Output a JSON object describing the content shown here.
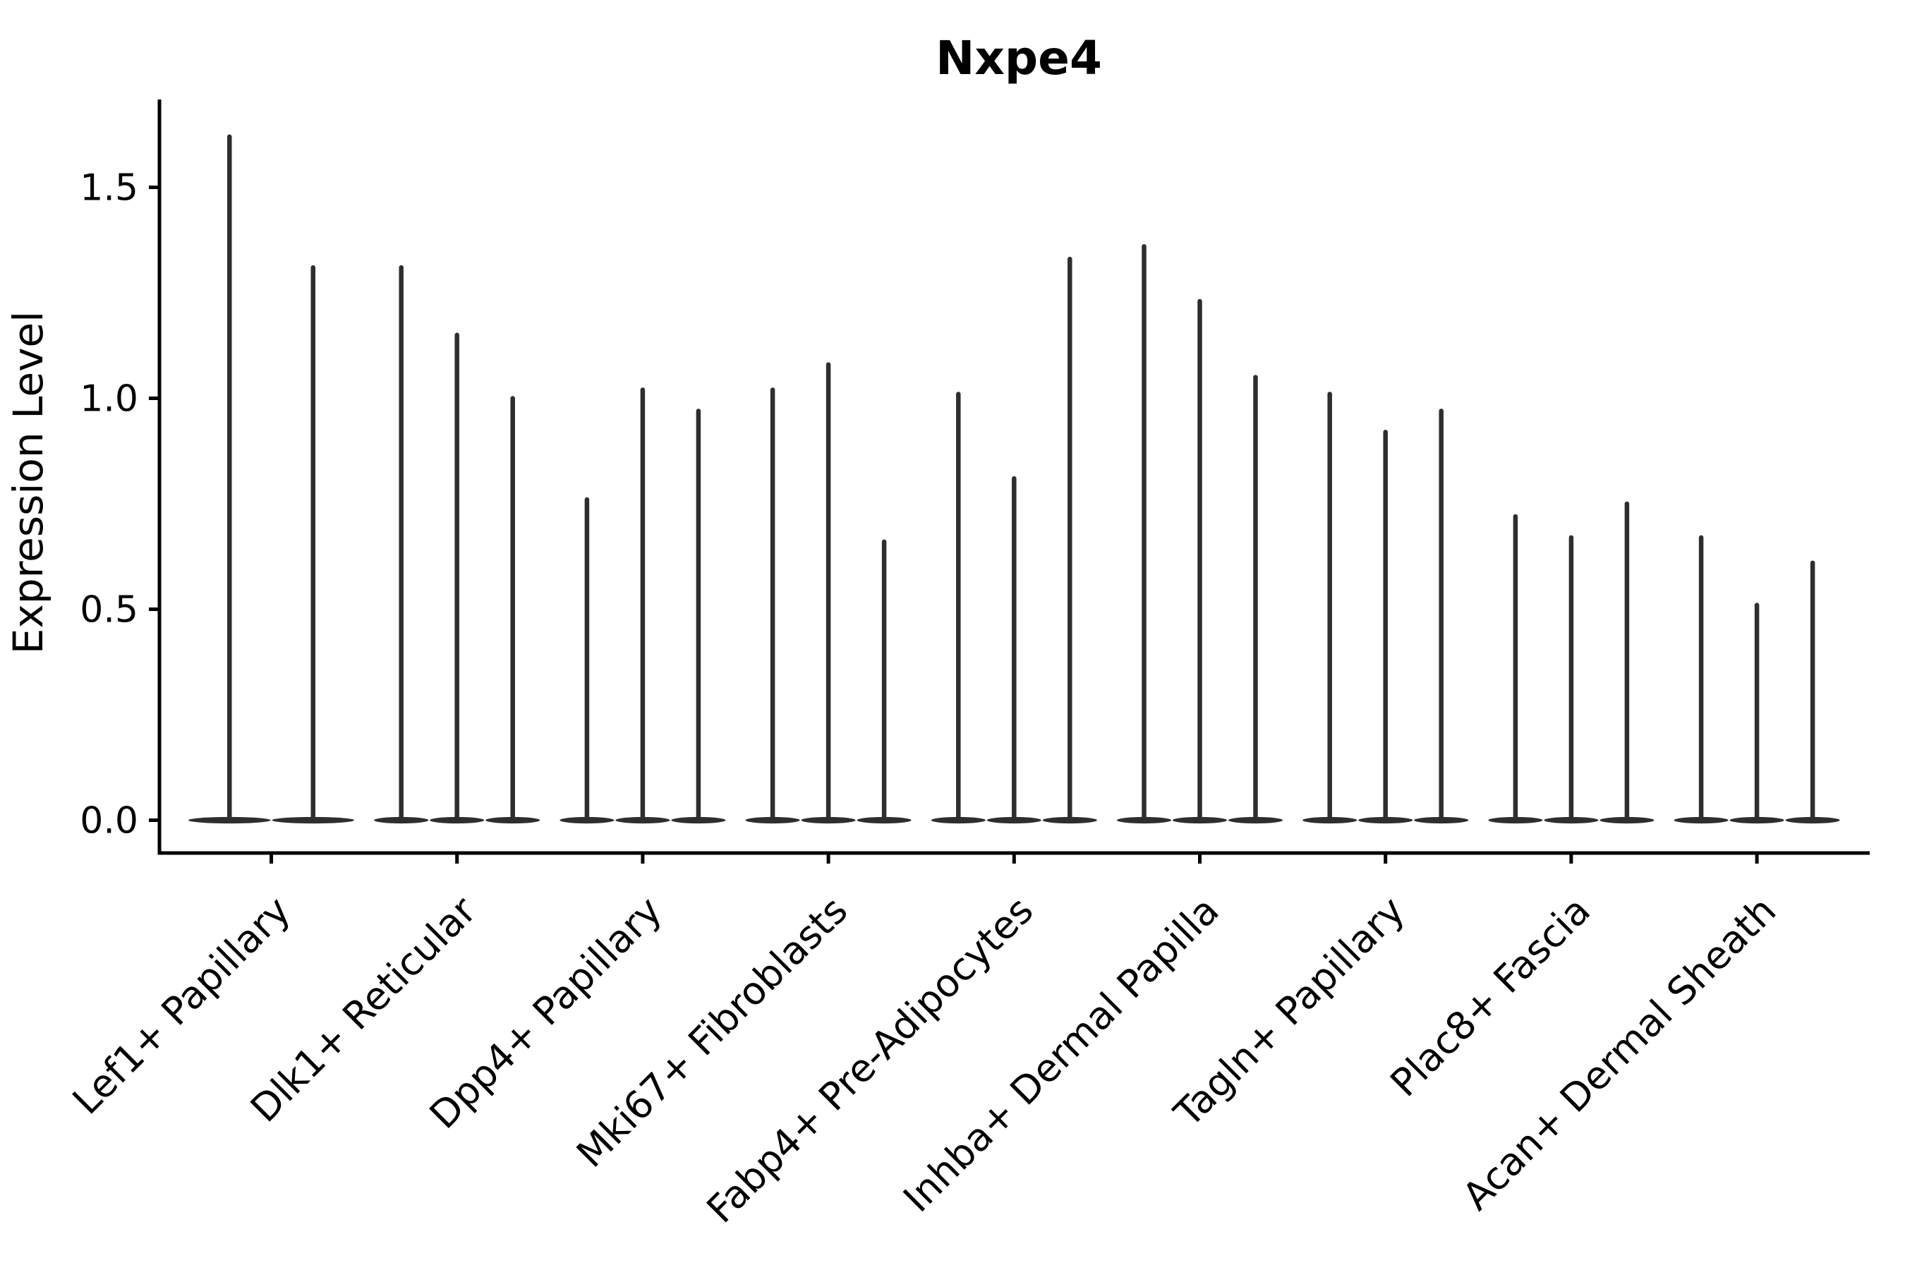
{
  "chart_data": {
    "type": "violin",
    "title": "Nxpe4",
    "xlabel": "",
    "ylabel": "Expression Level",
    "ytick_labels": [
      "0.0",
      "0.5",
      "1.0",
      "1.5"
    ],
    "ytick_values": [
      0.0,
      0.5,
      1.0,
      1.5
    ],
    "ylim": [
      -0.077,
      1.71
    ],
    "grid": false,
    "legend": null,
    "background_color": "#ffffff",
    "axis_color": "#000000",
    "violin_color": "#2e2e2e",
    "violin_style": "each thin violin has its density mass at 0 (wide flat base) with a narrow tail rising to its maximum expression value",
    "categories": [
      "Lef1+ Papillary",
      "Dlk1+ Reticular",
      "Dpp4+ Papillary",
      "Mki67+ Fibroblasts",
      "Fabp4+ Pre-Adipocytes",
      "Inhba+ Dermal Papilla",
      "Tagln+ Papillary",
      "Plac8+ Fascia",
      "Acan+ Dermal Sheath"
    ],
    "groups": [
      {
        "category": "Lef1+ Papillary",
        "violin_max_values": [
          1.62,
          1.31
        ]
      },
      {
        "category": "Dlk1+ Reticular",
        "violin_max_values": [
          1.31,
          1.15,
          1.0
        ]
      },
      {
        "category": "Dpp4+ Papillary",
        "violin_max_values": [
          0.76,
          1.02,
          0.97
        ]
      },
      {
        "category": "Mki67+ Fibroblasts",
        "violin_max_values": [
          1.02,
          1.08,
          0.66
        ]
      },
      {
        "category": "Fabp4+ Pre-Adipocytes",
        "violin_max_values": [
          1.01,
          0.81,
          1.33
        ]
      },
      {
        "category": "Inhba+ Dermal Papilla",
        "violin_max_values": [
          1.36,
          1.23,
          1.05
        ]
      },
      {
        "category": "Tagln+ Papillary",
        "violin_max_values": [
          1.01,
          0.92,
          0.97
        ]
      },
      {
        "category": "Plac8+ Fascia",
        "violin_max_values": [
          0.72,
          0.67,
          0.75
        ]
      },
      {
        "category": "Acan+ Dermal Sheath",
        "violin_max_values": [
          0.67,
          0.51,
          0.61
        ]
      }
    ]
  }
}
